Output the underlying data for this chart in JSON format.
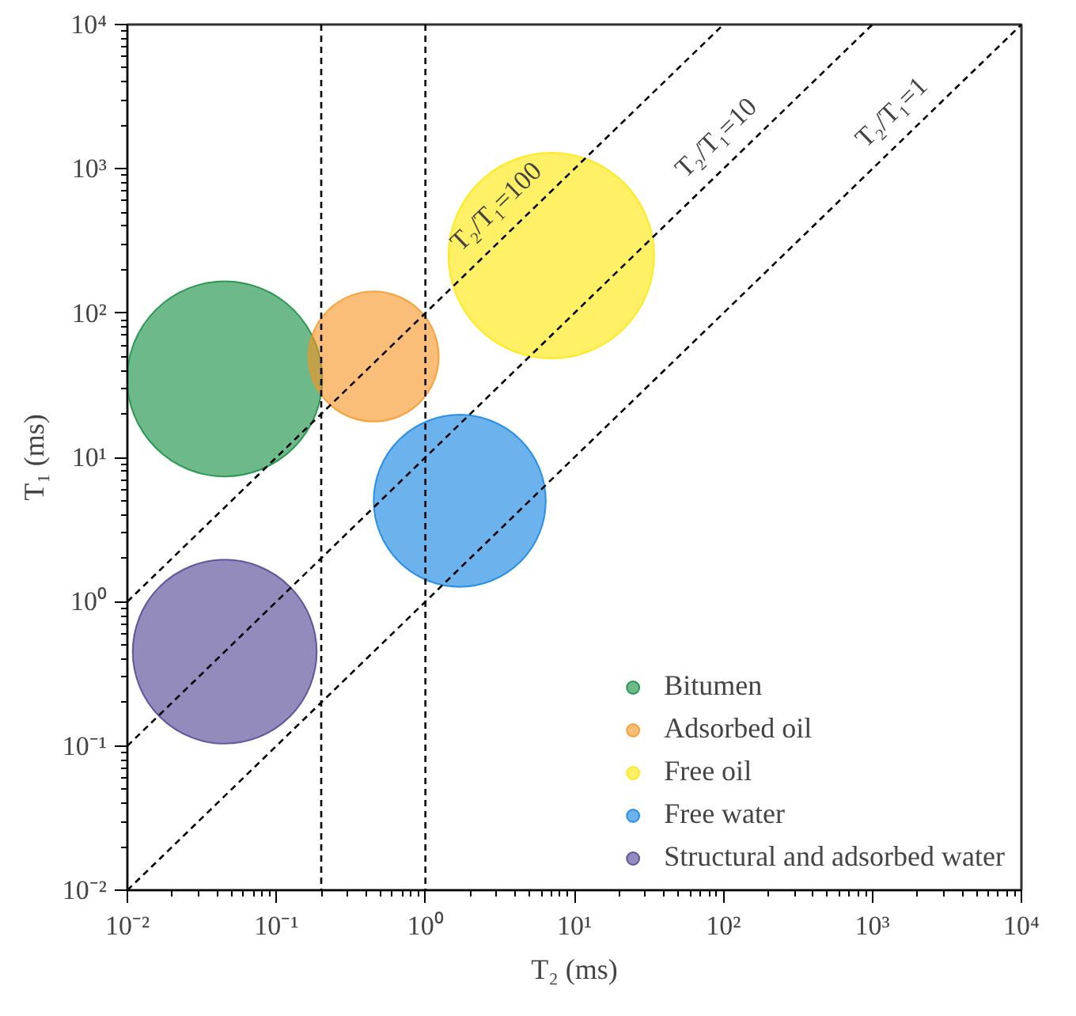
{
  "chart_data": {
    "type": "bubble",
    "xlabel": "T₂ (ms)",
    "ylabel": "T₁ (ms)",
    "log": "xy",
    "grid": false,
    "legend": "bottom right",
    "line_style": "dashed",
    "xlim": [
      0.01,
      10000
    ],
    "ylim": [
      0.01,
      10000
    ],
    "xticks": [
      {
        "value": 0.01,
        "label": "10⁻²"
      },
      {
        "value": 0.1,
        "label": "10⁻¹"
      },
      {
        "value": 1,
        "label": "10⁰"
      },
      {
        "value": 10,
        "label": "10¹"
      },
      {
        "value": 100,
        "label": "10²"
      },
      {
        "value": 1000,
        "label": "10³"
      },
      {
        "value": 10000,
        "label": "10⁴"
      }
    ],
    "yticks": [
      {
        "value": 0.01,
        "label": "10⁻²"
      },
      {
        "value": 0.1,
        "label": "10⁻¹"
      },
      {
        "value": 1,
        "label": "10⁰"
      },
      {
        "value": 10,
        "label": "10¹"
      },
      {
        "value": 100,
        "label": "10²"
      },
      {
        "value": 1000,
        "label": "10³"
      },
      {
        "value": 10000,
        "label": "10⁴"
      }
    ],
    "series": [
      {
        "name": "Bitumen",
        "color": "#0b8a3a",
        "x": [
          0.045
        ],
        "values": [
          35
        ],
        "sizes": [
          0.9
        ]
      },
      {
        "name": "Adsorbed oil",
        "color": "#f7931e",
        "x": [
          0.45
        ],
        "values": [
          50
        ],
        "sizes": [
          0.4
        ]
      },
      {
        "name": "Free oil",
        "color": "#ffe600",
        "x": [
          7
        ],
        "values": [
          250
        ],
        "sizes": [
          1
        ]
      },
      {
        "name": "Free water",
        "color": "#0a7fe0",
        "x": [
          1.7
        ],
        "values": [
          5
        ],
        "sizes": [
          0.7
        ]
      },
      {
        "name": "Structural and adsorbed water",
        "color": "#4a3d8f",
        "x": [
          0.045
        ],
        "values": [
          0.45
        ],
        "sizes": [
          0.8
        ]
      },
      {
        "type": "line",
        "color": "#000000",
        "x": [
          0.01,
          100
        ],
        "values": [
          1,
          10000
        ]
      },
      {
        "type": "line",
        "color": "#000000",
        "x": [
          0.01,
          1000
        ],
        "values": [
          0.1,
          10000
        ]
      },
      {
        "type": "line",
        "color": "#000000",
        "x": [
          0.01,
          10000
        ],
        "values": [
          0.01,
          10000
        ]
      }
    ],
    "ref_lines": [
      {
        "axis": "x",
        "value": 0.2,
        "color": "#000000",
        "line_style": "dashed"
      },
      {
        "axis": "x",
        "value": 1,
        "color": "#000000",
        "line_style": "dashed"
      }
    ],
    "annotations": [
      {
        "text": "T₂/T₁=100",
        "x": 4,
        "y": 400
      },
      {
        "text": "T₂/T₁=10",
        "x": 120,
        "y": 1200
      },
      {
        "text": "T₂/T₁=1",
        "x": 1800,
        "y": 1800
      }
    ]
  }
}
